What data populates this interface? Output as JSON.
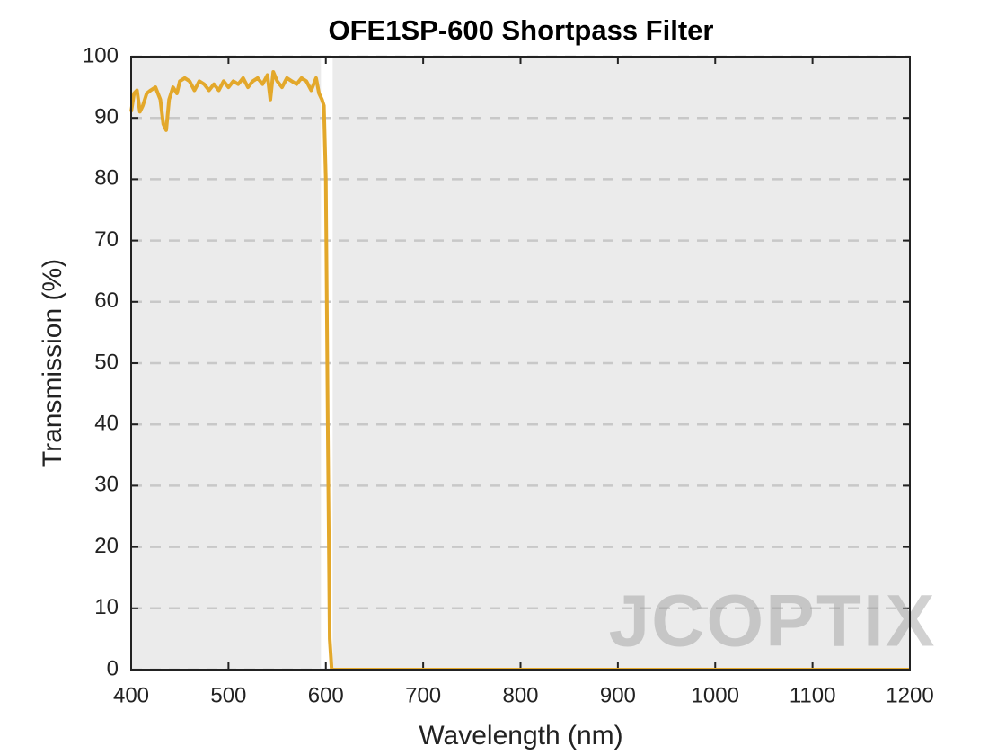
{
  "chart_data": {
    "type": "line",
    "title": "OFE1SP-600 Shortpass Filter",
    "x_label": "Wavelength (nm)",
    "y_label": "Transmission (%)",
    "watermark": "JCOPTIX",
    "color": "#e3a82b",
    "highlight_xlim": [
      595,
      607
    ],
    "x": [
      400,
      403,
      406,
      409,
      412,
      416,
      420,
      425,
      430,
      433,
      436,
      439,
      443,
      447,
      450,
      455,
      460,
      465,
      470,
      475,
      480,
      485,
      490,
      495,
      500,
      505,
      510,
      515,
      520,
      525,
      530,
      535,
      540,
      543,
      546,
      550,
      555,
      560,
      565,
      570,
      575,
      580,
      585,
      590,
      593,
      596,
      598,
      600,
      602,
      604,
      606,
      620,
      1200
    ],
    "values": [
      91,
      94,
      94.5,
      91,
      92,
      94,
      94.5,
      95,
      93,
      89,
      88,
      93,
      95,
      94,
      96,
      96.5,
      96,
      94.5,
      96,
      95.5,
      94.5,
      95.5,
      94.5,
      96,
      95,
      96,
      95.5,
      96.5,
      95,
      96,
      96.5,
      95.5,
      97,
      93,
      97.5,
      96,
      95,
      96.5,
      96,
      95.5,
      96.5,
      96,
      94.5,
      96.5,
      94,
      93,
      92,
      80,
      40,
      5,
      0,
      0,
      0
    ],
    "xlim": [
      400,
      1200
    ],
    "ylim": [
      0,
      100
    ],
    "xticks": [
      400,
      500,
      600,
      700,
      800,
      900,
      1000,
      1100,
      1200
    ],
    "yticks": [
      0,
      10,
      20,
      30,
      40,
      50,
      60,
      70,
      80,
      90,
      100
    ],
    "grid": true
  }
}
